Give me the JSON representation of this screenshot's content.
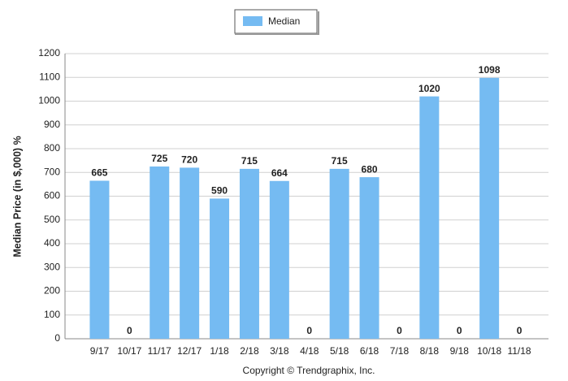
{
  "chart_data": {
    "type": "bar",
    "y_label": "Median Price (in $,000) %",
    "footer": "Copyright © Trendgraphix, Inc.",
    "categories": [
      "9/17",
      "10/17",
      "11/17",
      "12/17",
      "1/18",
      "2/18",
      "3/18",
      "4/18",
      "5/18",
      "6/18",
      "7/18",
      "8/18",
      "9/18",
      "10/18",
      "11/18"
    ],
    "series": [
      {
        "name": "Median",
        "color": "#75bbf2",
        "values": [
          665,
          0,
          725,
          720,
          590,
          715,
          664,
          0,
          715,
          680,
          0,
          1020,
          0,
          1098,
          0
        ]
      }
    ],
    "ylim": [
      0,
      1200
    ],
    "yticks": [
      0,
      100,
      200,
      300,
      400,
      500,
      600,
      700,
      800,
      900,
      1000,
      1100,
      1200
    ],
    "grid": true,
    "legend": "top"
  }
}
